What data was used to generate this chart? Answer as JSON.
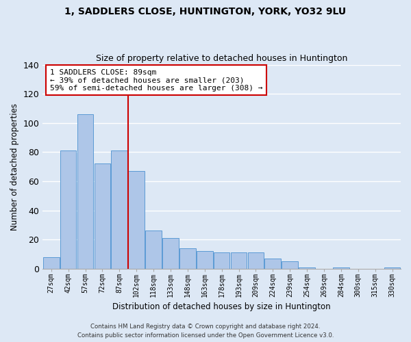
{
  "title": "1, SADDLERS CLOSE, HUNTINGTON, YORK, YO32 9LU",
  "subtitle": "Size of property relative to detached houses in Huntington",
  "xlabel": "Distribution of detached houses by size in Huntington",
  "ylabel": "Number of detached properties",
  "bar_color": "#aec6e8",
  "bar_edge_color": "#5b9bd5",
  "background_color": "#dde8f5",
  "grid_color": "#ffffff",
  "categories": [
    "27sqm",
    "42sqm",
    "57sqm",
    "72sqm",
    "87sqm",
    "102sqm",
    "118sqm",
    "133sqm",
    "148sqm",
    "163sqm",
    "178sqm",
    "193sqm",
    "209sqm",
    "224sqm",
    "239sqm",
    "254sqm",
    "269sqm",
    "284sqm",
    "300sqm",
    "315sqm",
    "330sqm"
  ],
  "values": [
    8,
    81,
    106,
    72,
    81,
    67,
    26,
    21,
    14,
    12,
    11,
    11,
    11,
    7,
    5,
    1,
    0,
    1,
    0,
    0,
    1
  ],
  "property_line_x": 4.5,
  "property_line_color": "#cc0000",
  "annotation_text": "1 SADDLERS CLOSE: 89sqm\n← 39% of detached houses are smaller (203)\n59% of semi-detached houses are larger (308) →",
  "ylim": [
    0,
    140
  ],
  "yticks": [
    0,
    20,
    40,
    60,
    80,
    100,
    120,
    140
  ],
  "title_fontsize": 10,
  "subtitle_fontsize": 9,
  "footer_line1": "Contains HM Land Registry data © Crown copyright and database right 2024.",
  "footer_line2": "Contains public sector information licensed under the Open Government Licence v3.0."
}
